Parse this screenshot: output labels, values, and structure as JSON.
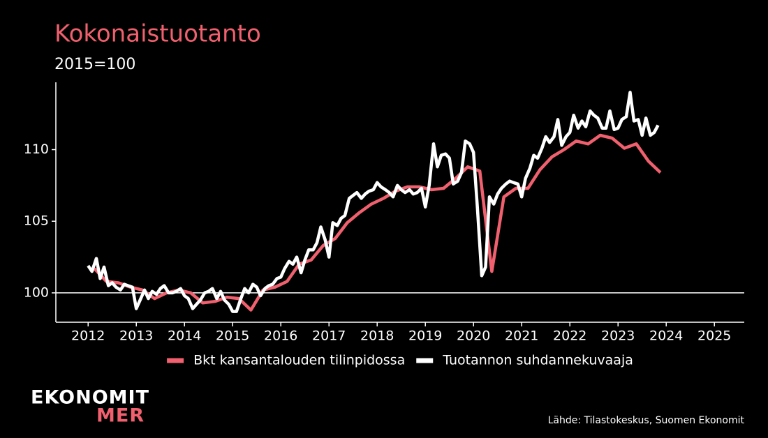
{
  "chart_data": {
    "type": "line",
    "title": "Kokonaistuotanto",
    "subtitle": "2015=100",
    "source": "Lähde: Tilastokeskus, Suomen Ekonomit",
    "logo": [
      "EKONOMIT",
      "MER"
    ],
    "xlim": [
      2011.33,
      2025.62
    ],
    "xticks": [
      2012,
      2013,
      2014,
      2015,
      2016,
      2017,
      2018,
      2019,
      2020,
      2021,
      2022,
      2023,
      2024,
      2025
    ],
    "ylim": [
      97.95,
      114.7
    ],
    "yticks": [
      100,
      105,
      110
    ],
    "baseline": 100,
    "legend": "bottom",
    "series": [
      {
        "name": "Bkt kansantalouden tilinpidossa",
        "color": "#f0606e",
        "x": [
          2012.13,
          2012.38,
          2012.63,
          2012.88,
          2013.13,
          2013.38,
          2013.63,
          2013.88,
          2014.13,
          2014.38,
          2014.63,
          2014.88,
          2015.13,
          2015.38,
          2015.63,
          2015.88,
          2016.13,
          2016.38,
          2016.63,
          2016.88,
          2017.13,
          2017.38,
          2017.63,
          2017.88,
          2018.13,
          2018.38,
          2018.63,
          2018.88,
          2019.13,
          2019.38,
          2019.63,
          2019.88,
          2020.13,
          2020.38,
          2020.63,
          2020.88,
          2021.13,
          2021.38,
          2021.63,
          2021.88,
          2022.13,
          2022.38,
          2022.63,
          2022.88,
          2023.13,
          2023.38,
          2023.63,
          2023.88
        ],
        "values": [
          101.7,
          100.8,
          100.7,
          100.4,
          100.2,
          99.6,
          100.0,
          100.2,
          100.0,
          99.3,
          99.4,
          99.7,
          99.6,
          98.8,
          100.2,
          100.4,
          100.8,
          102.0,
          102.3,
          103.3,
          103.8,
          104.9,
          105.6,
          106.2,
          106.6,
          107.1,
          107.4,
          107.4,
          107.2,
          107.3,
          108.0,
          108.8,
          108.5,
          101.5,
          106.7,
          107.3,
          107.3,
          108.6,
          109.5,
          110.0,
          110.6,
          110.4,
          111.0,
          110.8,
          110.1,
          110.4,
          109.2,
          108.4
        ]
      },
      {
        "name": "Tuotannon suhdannekuvaaja",
        "color": "#ffffff",
        "x": [
          2012,
          2012.08,
          2012.17,
          2012.25,
          2012.33,
          2012.42,
          2012.5,
          2012.58,
          2012.67,
          2012.75,
          2012.83,
          2012.92,
          2013,
          2013.08,
          2013.17,
          2013.25,
          2013.33,
          2013.42,
          2013.5,
          2013.58,
          2013.67,
          2013.75,
          2013.83,
          2013.92,
          2014,
          2014.08,
          2014.17,
          2014.25,
          2014.33,
          2014.42,
          2014.5,
          2014.58,
          2014.67,
          2014.75,
          2014.83,
          2014.92,
          2015,
          2015.08,
          2015.17,
          2015.25,
          2015.33,
          2015.42,
          2015.5,
          2015.58,
          2015.67,
          2015.75,
          2015.83,
          2015.92,
          2016,
          2016.08,
          2016.17,
          2016.25,
          2016.33,
          2016.42,
          2016.5,
          2016.58,
          2016.67,
          2016.75,
          2016.83,
          2016.92,
          2017,
          2017.08,
          2017.17,
          2017.25,
          2017.33,
          2017.42,
          2017.5,
          2017.58,
          2017.67,
          2017.75,
          2017.83,
          2017.92,
          2018,
          2018.08,
          2018.17,
          2018.25,
          2018.33,
          2018.42,
          2018.5,
          2018.58,
          2018.67,
          2018.75,
          2018.83,
          2018.92,
          2019,
          2019.08,
          2019.17,
          2019.25,
          2019.33,
          2019.42,
          2019.5,
          2019.58,
          2019.67,
          2019.75,
          2019.83,
          2019.92,
          2020,
          2020.08,
          2020.17,
          2020.25,
          2020.33,
          2020.42,
          2020.5,
          2020.58,
          2020.67,
          2020.75,
          2020.83,
          2020.92,
          2021,
          2021.08,
          2021.17,
          2021.25,
          2021.33,
          2021.42,
          2021.5,
          2021.58,
          2021.67,
          2021.75,
          2021.83,
          2021.92,
          2022,
          2022.08,
          2022.17,
          2022.25,
          2022.33,
          2022.42,
          2022.5,
          2022.58,
          2022.67,
          2022.75,
          2022.83,
          2022.92,
          2023,
          2023.08,
          2023.17,
          2023.25,
          2023.33,
          2023.42,
          2023.5,
          2023.58,
          2023.67,
          2023.75,
          2023.83
        ],
        "values": [
          101.9,
          101.5,
          102.4,
          101.0,
          101.8,
          100.5,
          100.7,
          100.4,
          100.2,
          100.6,
          100.5,
          100.4,
          98.9,
          99.5,
          100.2,
          99.6,
          100.1,
          99.9,
          100.3,
          100.5,
          100.0,
          100.0,
          100.1,
          100.3,
          99.8,
          99.6,
          98.9,
          99.2,
          99.5,
          100.0,
          100.1,
          100.3,
          99.6,
          100.1,
          99.5,
          99.2,
          98.7,
          98.7,
          99.6,
          100.3,
          100.0,
          100.6,
          100.4,
          99.8,
          100.3,
          100.5,
          100.6,
          101.0,
          101.1,
          101.7,
          102.2,
          102.0,
          102.5,
          101.4,
          102.3,
          103.0,
          103.0,
          103.5,
          104.6,
          103.7,
          102.5,
          104.9,
          104.7,
          105.2,
          105.4,
          106.6,
          106.8,
          107.0,
          106.6,
          106.9,
          107.1,
          107.2,
          107.7,
          107.4,
          107.2,
          107.0,
          106.7,
          107.5,
          107.2,
          107.0,
          107.2,
          106.9,
          107.0,
          107.3,
          106.0,
          107.5,
          110.4,
          108.8,
          109.6,
          109.7,
          109.4,
          107.6,
          107.8,
          108.4,
          110.6,
          110.4,
          109.8,
          106.0,
          101.2,
          101.8,
          106.7,
          106.2,
          106.9,
          107.3,
          107.6,
          107.8,
          107.7,
          107.6,
          106.7,
          108.0,
          108.7,
          109.6,
          109.4,
          110.1,
          110.9,
          110.5,
          110.9,
          112.1,
          110.3,
          110.9,
          111.2,
          112.4,
          111.5,
          112.0,
          111.6,
          112.7,
          112.4,
          112.2,
          111.5,
          111.5,
          112.7,
          111.4,
          111.5,
          112.1,
          112.3,
          114.0,
          112.0,
          112.1,
          111.0,
          112.2,
          111.0,
          111.2,
          111.7
        ]
      }
    ]
  }
}
